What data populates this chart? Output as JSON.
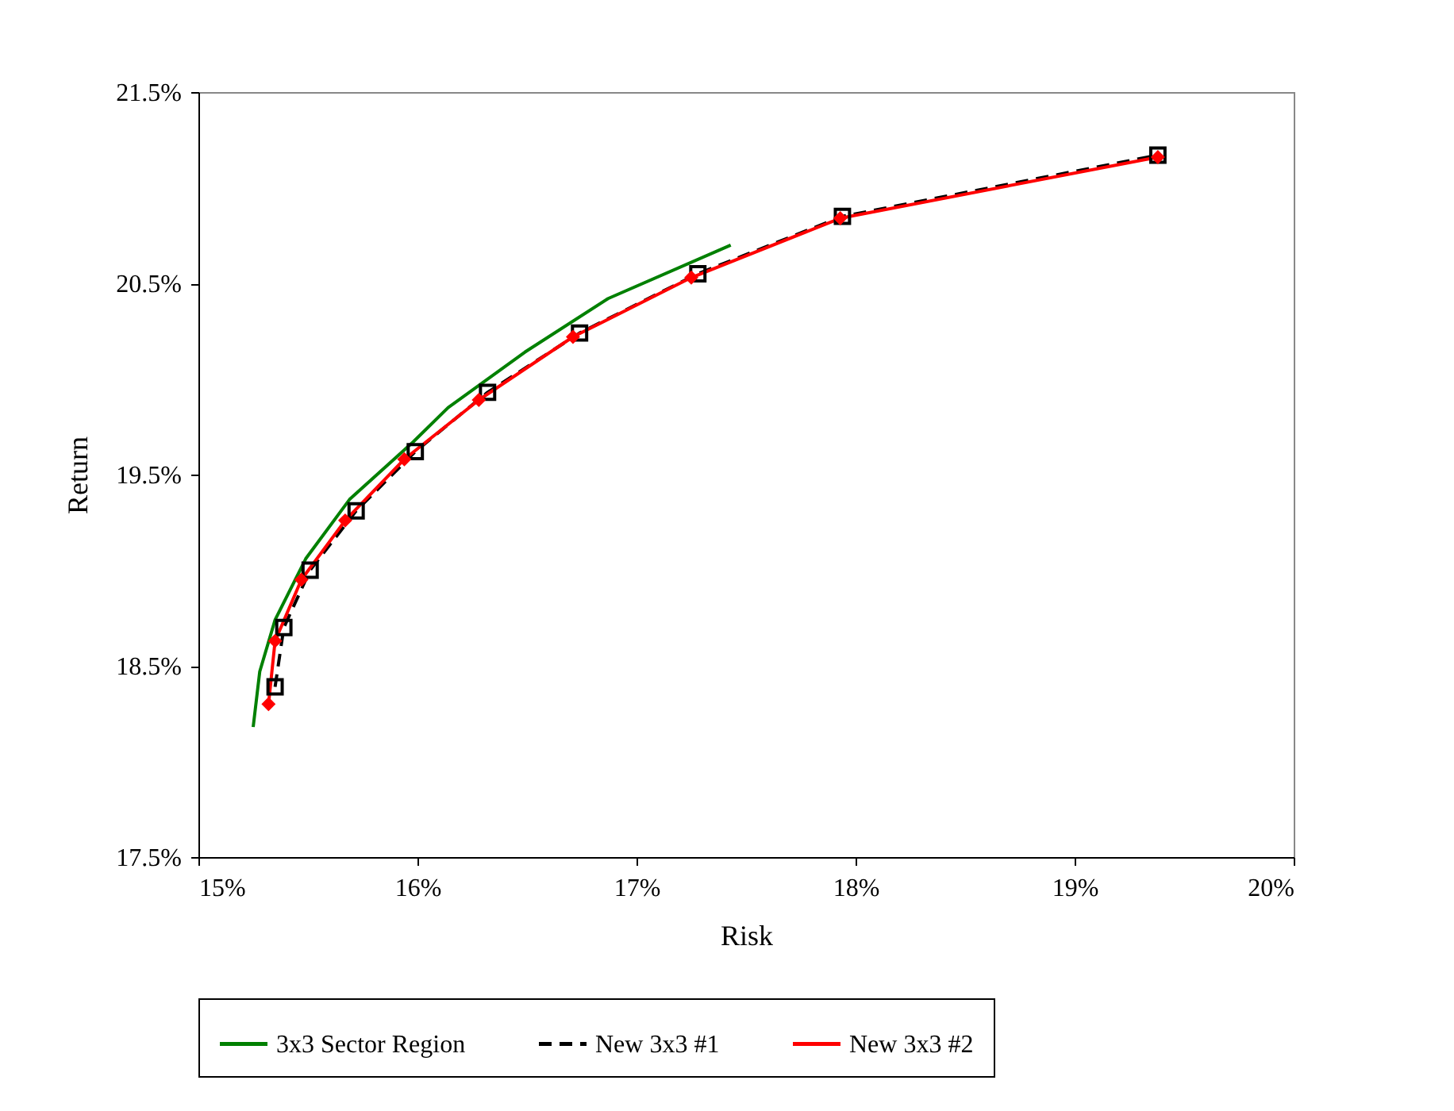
{
  "chart_data": {
    "type": "line",
    "xlabel": "Risk",
    "ylabel": "Return",
    "xlim": [
      15,
      20
    ],
    "ylim": [
      17.5,
      21.5
    ],
    "xticks": [
      {
        "value": 15,
        "label": "15%"
      },
      {
        "value": 16,
        "label": "16%"
      },
      {
        "value": 17,
        "label": "17%"
      },
      {
        "value": 18,
        "label": "18%"
      },
      {
        "value": 19,
        "label": "19%"
      },
      {
        "value": 20,
        "label": "20%"
      }
    ],
    "yticks": [
      {
        "value": 17.5,
        "label": "17.5%"
      },
      {
        "value": 18.5,
        "label": "18.5%"
      },
      {
        "value": 19.5,
        "label": "19.5%"
      },
      {
        "value": 20.5,
        "label": "20.5%"
      },
      {
        "value": 21.5,
        "label": "21.5%"
      }
    ],
    "grid": false,
    "legend": "bottom",
    "series": [
      {
        "name": "3x3 Sector Region",
        "color": "#008000",
        "marker": "none",
        "line_style": "solid",
        "x": [
          15.25,
          15.28,
          15.35,
          15.49,
          15.69,
          15.98,
          16.14,
          16.49,
          16.87,
          17.43
        ],
        "values": [
          18.18,
          18.47,
          18.74,
          19.06,
          19.37,
          19.67,
          19.85,
          20.14,
          20.42,
          20.7
        ]
      },
      {
        "name": "New 3x3 #1",
        "color": "#000000",
        "marker": "square",
        "line_style": "dashed",
        "x": [
          15.35,
          15.39,
          15.51,
          15.72,
          15.99,
          16.32,
          16.74,
          17.28,
          17.94,
          19.38
        ],
        "values": [
          18.39,
          18.7,
          19.0,
          19.31,
          19.62,
          19.93,
          20.24,
          20.55,
          20.85,
          21.17
        ]
      },
      {
        "name": "New 3x3 #2",
        "color": "#ff0000",
        "marker": "diamond",
        "line_style": "solid",
        "x": [
          15.32,
          15.35,
          15.47,
          15.67,
          15.94,
          16.28,
          16.71,
          17.25,
          17.93,
          19.38
        ],
        "values": [
          18.3,
          18.63,
          18.95,
          19.26,
          19.58,
          19.89,
          20.22,
          20.53,
          20.84,
          21.16
        ]
      }
    ]
  }
}
